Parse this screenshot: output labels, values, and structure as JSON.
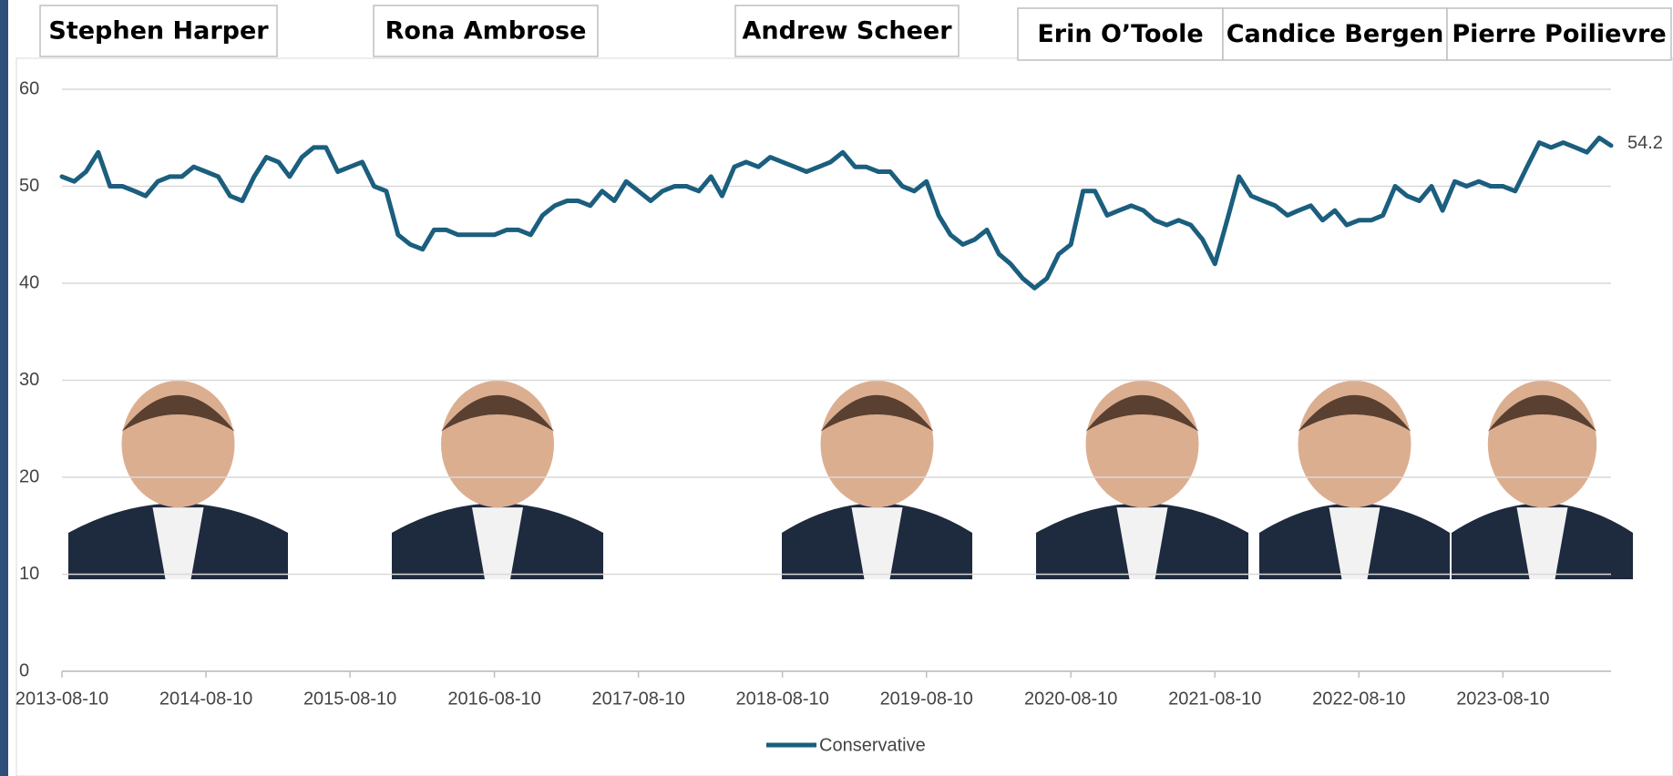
{
  "chart_data": {
    "type": "line",
    "annotations": [
      "Stephen Harper",
      "Rona Ambrose",
      "Andrew Scheer",
      "Erin O’Toole",
      "Candice Bergen",
      "Pierre Poilievre"
    ],
    "x": [
      "2013-08-10",
      "2013-09-10",
      "2013-10-10",
      "2013-11-10",
      "2013-12-10",
      "2014-01-10",
      "2014-02-10",
      "2014-03-10",
      "2014-04-10",
      "2014-05-10",
      "2014-06-10",
      "2014-07-10",
      "2014-08-10",
      "2014-09-10",
      "2014-10-10",
      "2014-11-10",
      "2014-12-10",
      "2015-01-10",
      "2015-02-10",
      "2015-03-10",
      "2015-04-10",
      "2015-05-10",
      "2015-06-10",
      "2015-07-10",
      "2015-08-10",
      "2015-09-10",
      "2015-10-10",
      "2015-11-10",
      "2015-12-10",
      "2016-01-10",
      "2016-02-10",
      "2016-03-10",
      "2016-04-10",
      "2016-05-10",
      "2016-06-10",
      "2016-07-10",
      "2016-08-10",
      "2016-09-10",
      "2016-10-10",
      "2016-11-10",
      "2016-12-10",
      "2017-01-10",
      "2017-02-10",
      "2017-03-10",
      "2017-04-10",
      "2017-05-10",
      "2017-06-10",
      "2017-07-10",
      "2017-08-10",
      "2017-09-10",
      "2017-10-10",
      "2017-11-10",
      "2017-12-10",
      "2018-01-10",
      "2018-02-10",
      "2018-03-10",
      "2018-04-10",
      "2018-05-10",
      "2018-06-10",
      "2018-07-10",
      "2018-08-10",
      "2018-09-10",
      "2018-10-10",
      "2018-11-10",
      "2018-12-10",
      "2019-01-10",
      "2019-02-10",
      "2019-03-10",
      "2019-04-10",
      "2019-05-10",
      "2019-06-10",
      "2019-07-10",
      "2019-08-10",
      "2019-09-10",
      "2019-10-10",
      "2019-11-10",
      "2019-12-10",
      "2020-01-10",
      "2020-02-10",
      "2020-03-10",
      "2020-04-10",
      "2020-05-10",
      "2020-06-10",
      "2020-07-10",
      "2020-08-10",
      "2020-09-10",
      "2020-10-10",
      "2020-11-10",
      "2020-12-10",
      "2021-01-10",
      "2021-02-10",
      "2021-03-10",
      "2021-04-10",
      "2021-05-10",
      "2021-06-10",
      "2021-07-10",
      "2021-08-10",
      "2021-09-10",
      "2021-10-10",
      "2021-11-10",
      "2021-12-10",
      "2022-01-10",
      "2022-02-10",
      "2022-03-10",
      "2022-04-10",
      "2022-05-10",
      "2022-06-10",
      "2022-07-10",
      "2022-08-10",
      "2022-09-10",
      "2022-10-10",
      "2022-11-10",
      "2022-12-10",
      "2023-01-10",
      "2023-02-10",
      "2023-03-10",
      "2023-04-10",
      "2023-05-10",
      "2023-06-10",
      "2023-07-10",
      "2023-08-10",
      "2023-09-10",
      "2023-10-10",
      "2023-11-10",
      "2023-12-10",
      "2024-01-10",
      "2024-02-10",
      "2024-03-10",
      "2024-04-10",
      "2024-05-10"
    ],
    "series": [
      {
        "name": "Conservative",
        "color": "#1b5e7e",
        "values": [
          51,
          50.5,
          51.5,
          53.5,
          50,
          50,
          49.5,
          49,
          50.5,
          51,
          51,
          52,
          51.5,
          51,
          49,
          48.5,
          51,
          53,
          52.5,
          51,
          53,
          54,
          54,
          51.5,
          52,
          52.5,
          50,
          49.5,
          45,
          44,
          43.5,
          45.5,
          45.5,
          45,
          45,
          45,
          45,
          45.5,
          45.5,
          45,
          47,
          48,
          48.5,
          48.5,
          48,
          49.5,
          48.5,
          50.5,
          49.5,
          48.5,
          49.5,
          50,
          50,
          49.5,
          51,
          49,
          52,
          52.5,
          52,
          53,
          52.5,
          52,
          51.5,
          52,
          52.5,
          53.5,
          52,
          52,
          51.5,
          51.5,
          50,
          49.5,
          50.5,
          47,
          45,
          44,
          44.5,
          45.5,
          43,
          42,
          40.5,
          39.5,
          40.5,
          43,
          44,
          49.5,
          49.5,
          47,
          47.5,
          48,
          47.5,
          46.5,
          46,
          46.5,
          46,
          44.5,
          42,
          46.5,
          51,
          49,
          48.5,
          48,
          47,
          47.5,
          48,
          46.5,
          47.5,
          46,
          46.5,
          46.5,
          47,
          50,
          49,
          48.5,
          50,
          47.5,
          50.5,
          50,
          50.5,
          50,
          50,
          49.5,
          52,
          54.5,
          54,
          54.5,
          54,
          53.5,
          55,
          54.2
        ]
      }
    ],
    "xlim": [
      "2013-08-10",
      "2024-05-10"
    ],
    "xticks": [
      "2013-08-10",
      "2014-08-10",
      "2015-08-10",
      "2016-08-10",
      "2017-08-10",
      "2018-08-10",
      "2019-08-10",
      "2020-08-10",
      "2021-08-10",
      "2022-08-10",
      "2023-08-10"
    ],
    "ylim": [
      0,
      60
    ],
    "yticks": [
      0,
      10,
      20,
      30,
      40,
      50,
      60
    ],
    "grid": true,
    "legend": "bottom"
  }
}
